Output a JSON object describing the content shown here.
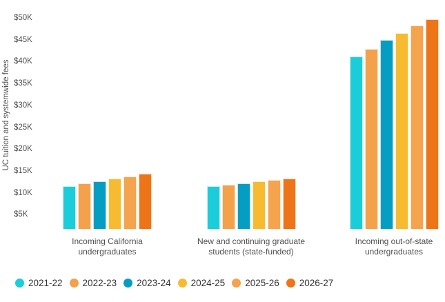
{
  "chart_data": {
    "type": "bar",
    "ylabel": "UC tuition and systemwide fees",
    "y_ticks": [
      "$50K",
      "$45K",
      "$40K",
      "$35K",
      "$30K",
      "$25K",
      "$20K",
      "$15K",
      "$10K",
      "$5K"
    ],
    "y_tick_values": [
      50000,
      45000,
      40000,
      35000,
      30000,
      25000,
      20000,
      15000,
      10000,
      5000
    ],
    "ylim": [
      0,
      52000
    ],
    "grid": false,
    "legend_position": "bottom",
    "categories": [
      "Incoming California undergraduates",
      "New and continuing graduate students (state-funded)",
      "Incoming out-of-state undergraduates"
    ],
    "categories_lines": [
      [
        "Incoming California",
        "undergraduates"
      ],
      [
        "New and continuing graduate",
        "students (state-funded)"
      ],
      [
        "Incoming out-of-state",
        "undergraduates"
      ]
    ],
    "series": [
      {
        "name": "2021-22",
        "color": "#1bcdd9",
        "values": [
          11500,
          11500,
          41200
        ]
      },
      {
        "name": "2022-23",
        "color": "#f3a14b",
        "values": [
          12100,
          11900,
          42900
        ]
      },
      {
        "name": "2023-24",
        "color": "#069dc3",
        "values": [
          12600,
          12200,
          44900
        ]
      },
      {
        "name": "2024-25",
        "color": "#f6bb31",
        "values": [
          13200,
          12600,
          46600
        ]
      },
      {
        "name": "2025-26",
        "color": "#f5a34d",
        "values": [
          13700,
          13000,
          48300
        ]
      },
      {
        "name": "2026-27",
        "color": "#ee7418",
        "values": [
          14300,
          13300,
          49700
        ]
      }
    ]
  }
}
